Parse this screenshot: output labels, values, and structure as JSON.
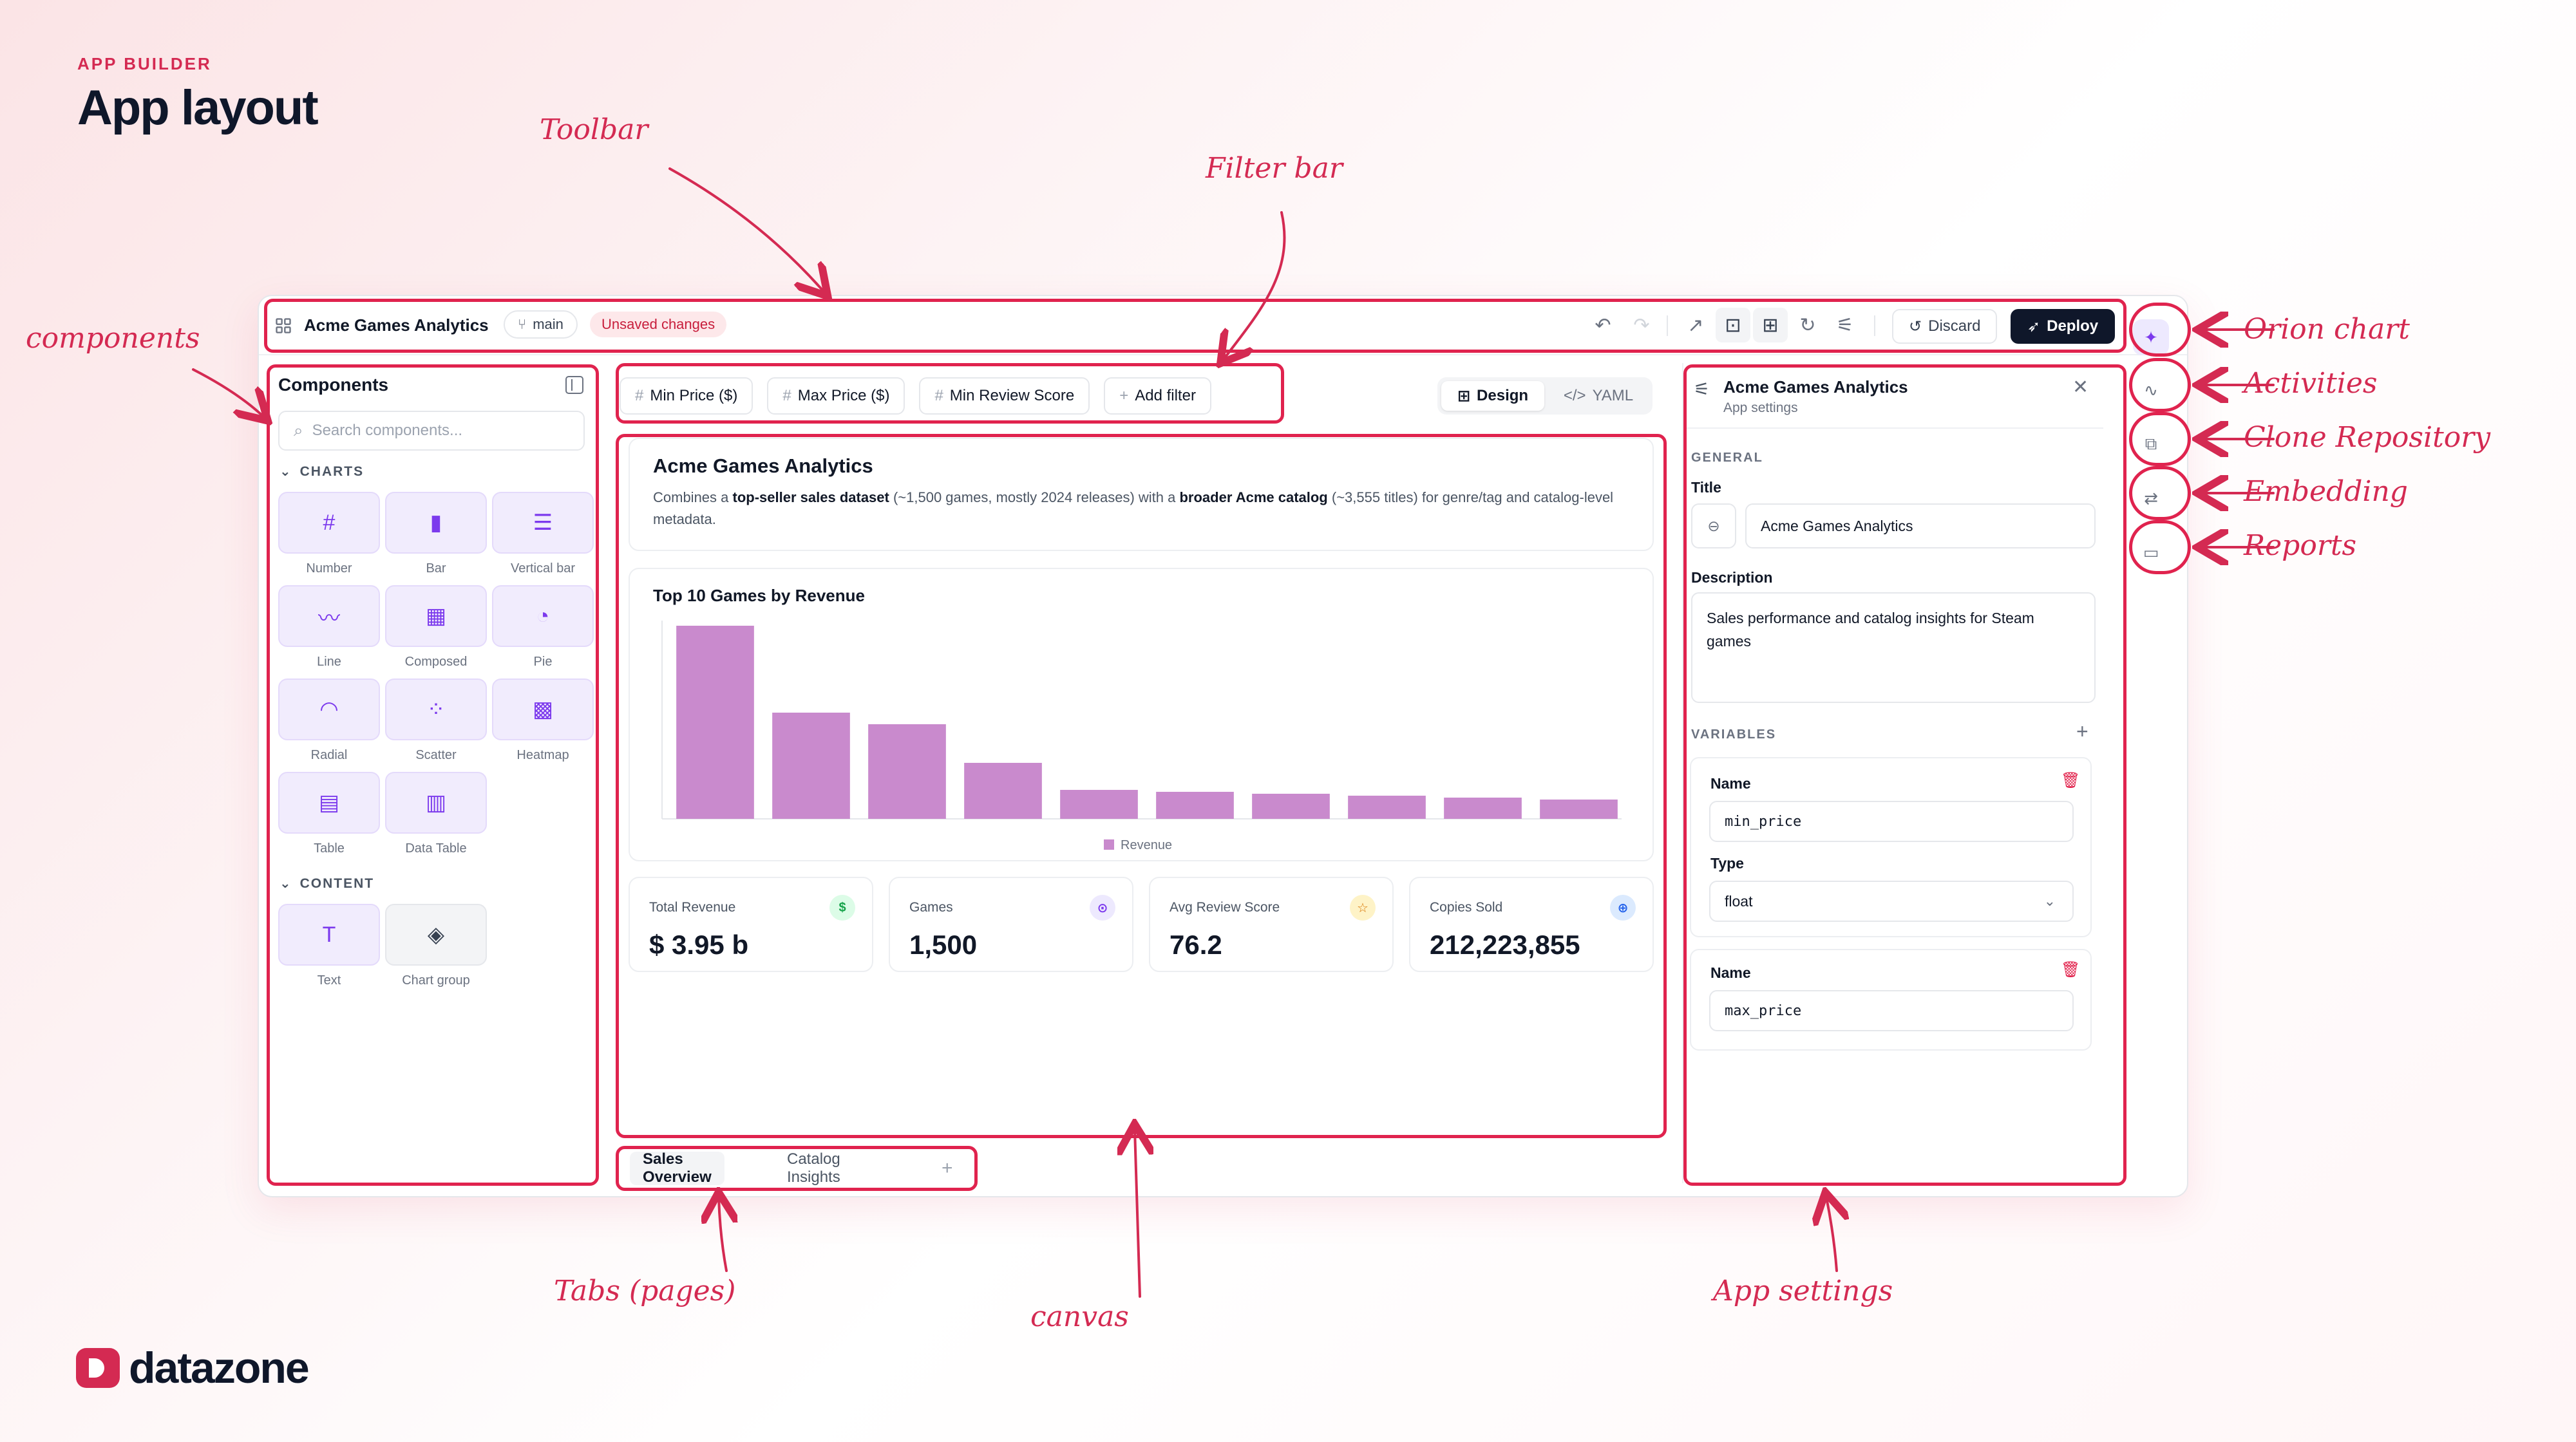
{
  "header": {
    "eyebrow": "APP BUILDER",
    "title": "App layout"
  },
  "toolbar": {
    "app_title": "Acme Games Analytics",
    "branch": "main",
    "status_badge": "Unsaved changes",
    "discard_label": "Discard",
    "deploy_label": "Deploy"
  },
  "components": {
    "title": "Components",
    "search_placeholder": "Search components...",
    "sections": [
      {
        "label": "CHARTS",
        "items": [
          {
            "label": "Number",
            "icon": "hash-icon",
            "glyph": "#"
          },
          {
            "label": "Bar",
            "icon": "bar-chart-icon",
            "glyph": "▮"
          },
          {
            "label": "Vertical bar",
            "icon": "vertical-bar-icon",
            "glyph": "☰"
          },
          {
            "label": "Line",
            "icon": "line-chart-icon",
            "glyph": "〰"
          },
          {
            "label": "Composed",
            "icon": "composed-icon",
            "glyph": "▦"
          },
          {
            "label": "Pie",
            "icon": "pie-icon",
            "glyph": "◔"
          },
          {
            "label": "Radial",
            "icon": "radial-icon",
            "glyph": "◠"
          },
          {
            "label": "Scatter",
            "icon": "scatter-icon",
            "glyph": "⁘"
          },
          {
            "label": "Heatmap",
            "icon": "heatmap-icon",
            "glyph": "▩"
          },
          {
            "label": "Table",
            "icon": "table-icon",
            "glyph": "▤"
          },
          {
            "label": "Data Table",
            "icon": "data-table-icon",
            "glyph": "▥"
          }
        ]
      },
      {
        "label": "CONTENT",
        "items": [
          {
            "label": "Text",
            "icon": "text-icon",
            "glyph": "T"
          },
          {
            "label": "Chart group",
            "icon": "layers-icon",
            "glyph": "◈"
          }
        ]
      }
    ]
  },
  "filters": {
    "chips": [
      {
        "label": "Min Price ($)"
      },
      {
        "label": "Max Price ($)"
      },
      {
        "label": "Min Review Score"
      }
    ],
    "add_label": "Add filter",
    "mode_design": "Design",
    "mode_yaml": "YAML"
  },
  "canvas": {
    "desc_title": "Acme Games Analytics",
    "desc_parts": [
      {
        "text": "Combines a ",
        "bold": false
      },
      {
        "text": "top-seller sales dataset",
        "bold": true
      },
      {
        "text": " (~1,500 games, mostly 2024 releases) with a ",
        "bold": false
      },
      {
        "text": "broader Acme catalog",
        "bold": true
      },
      {
        "text": " (~3,555 titles) for genre/tag and catalog-level metadata.",
        "bold": false
      }
    ],
    "kpis": [
      {
        "label": "Total Revenue",
        "value": "$ 3.95 b",
        "icon": "dollar-icon",
        "glyph": "$",
        "color": "#16a34a",
        "bg": "#dcfce7"
      },
      {
        "label": "Games",
        "value": "1,500",
        "icon": "gamepad-icon",
        "glyph": "⊙",
        "color": "#7c3aed",
        "bg": "#ede9fe"
      },
      {
        "label": "Avg Review Score",
        "value": "76.2",
        "icon": "star-icon",
        "glyph": "☆",
        "color": "#d97706",
        "bg": "#fef3c7"
      },
      {
        "label": "Copies Sold",
        "value": "212,223,855",
        "icon": "cart-icon",
        "glyph": "⊕",
        "color": "#2563eb",
        "bg": "#dbeafe"
      }
    ]
  },
  "chart_data": {
    "type": "bar",
    "title": "Top 10 Games by Revenue",
    "values": [
      100,
      55,
      49,
      29,
      15,
      14,
      13,
      12,
      11,
      10
    ],
    "series": [
      {
        "name": "Revenue"
      }
    ],
    "ylim": [
      0,
      100
    ],
    "grid": false,
    "legend": "bottom",
    "color": "#c98acd"
  },
  "tabs": {
    "items": [
      "Sales Overview",
      "Catalog Insights"
    ]
  },
  "settings": {
    "title": "Acme Games Analytics",
    "subtitle": "App settings",
    "general_label": "GENERAL",
    "title_label": "Title",
    "title_value": "Acme Games Analytics",
    "description_label": "Description",
    "description_value": "Sales performance and catalog insights for Steam games",
    "variables_label": "VARIABLES",
    "variables": [
      {
        "name_label": "Name",
        "name_value": "min_price",
        "type_label": "Type",
        "type_value": "float"
      },
      {
        "name_label": "Name",
        "name_value": "max_price"
      }
    ]
  },
  "annotations": {
    "toolbar": "Toolbar",
    "filter_bar": "Filter bar",
    "components": "components",
    "orion_chart": "Orion chart",
    "activities": "Activities",
    "clone_repository": "Clone Repository",
    "embedding": "Embedding",
    "reports": "Reports",
    "tabs": "Tabs (pages)",
    "canvas": "canvas",
    "app_settings": "App settings"
  },
  "brand": {
    "name": "datazone"
  },
  "colors": {
    "accent": "#d42a52",
    "bar": "#c98acd",
    "dark": "#0f172a"
  }
}
